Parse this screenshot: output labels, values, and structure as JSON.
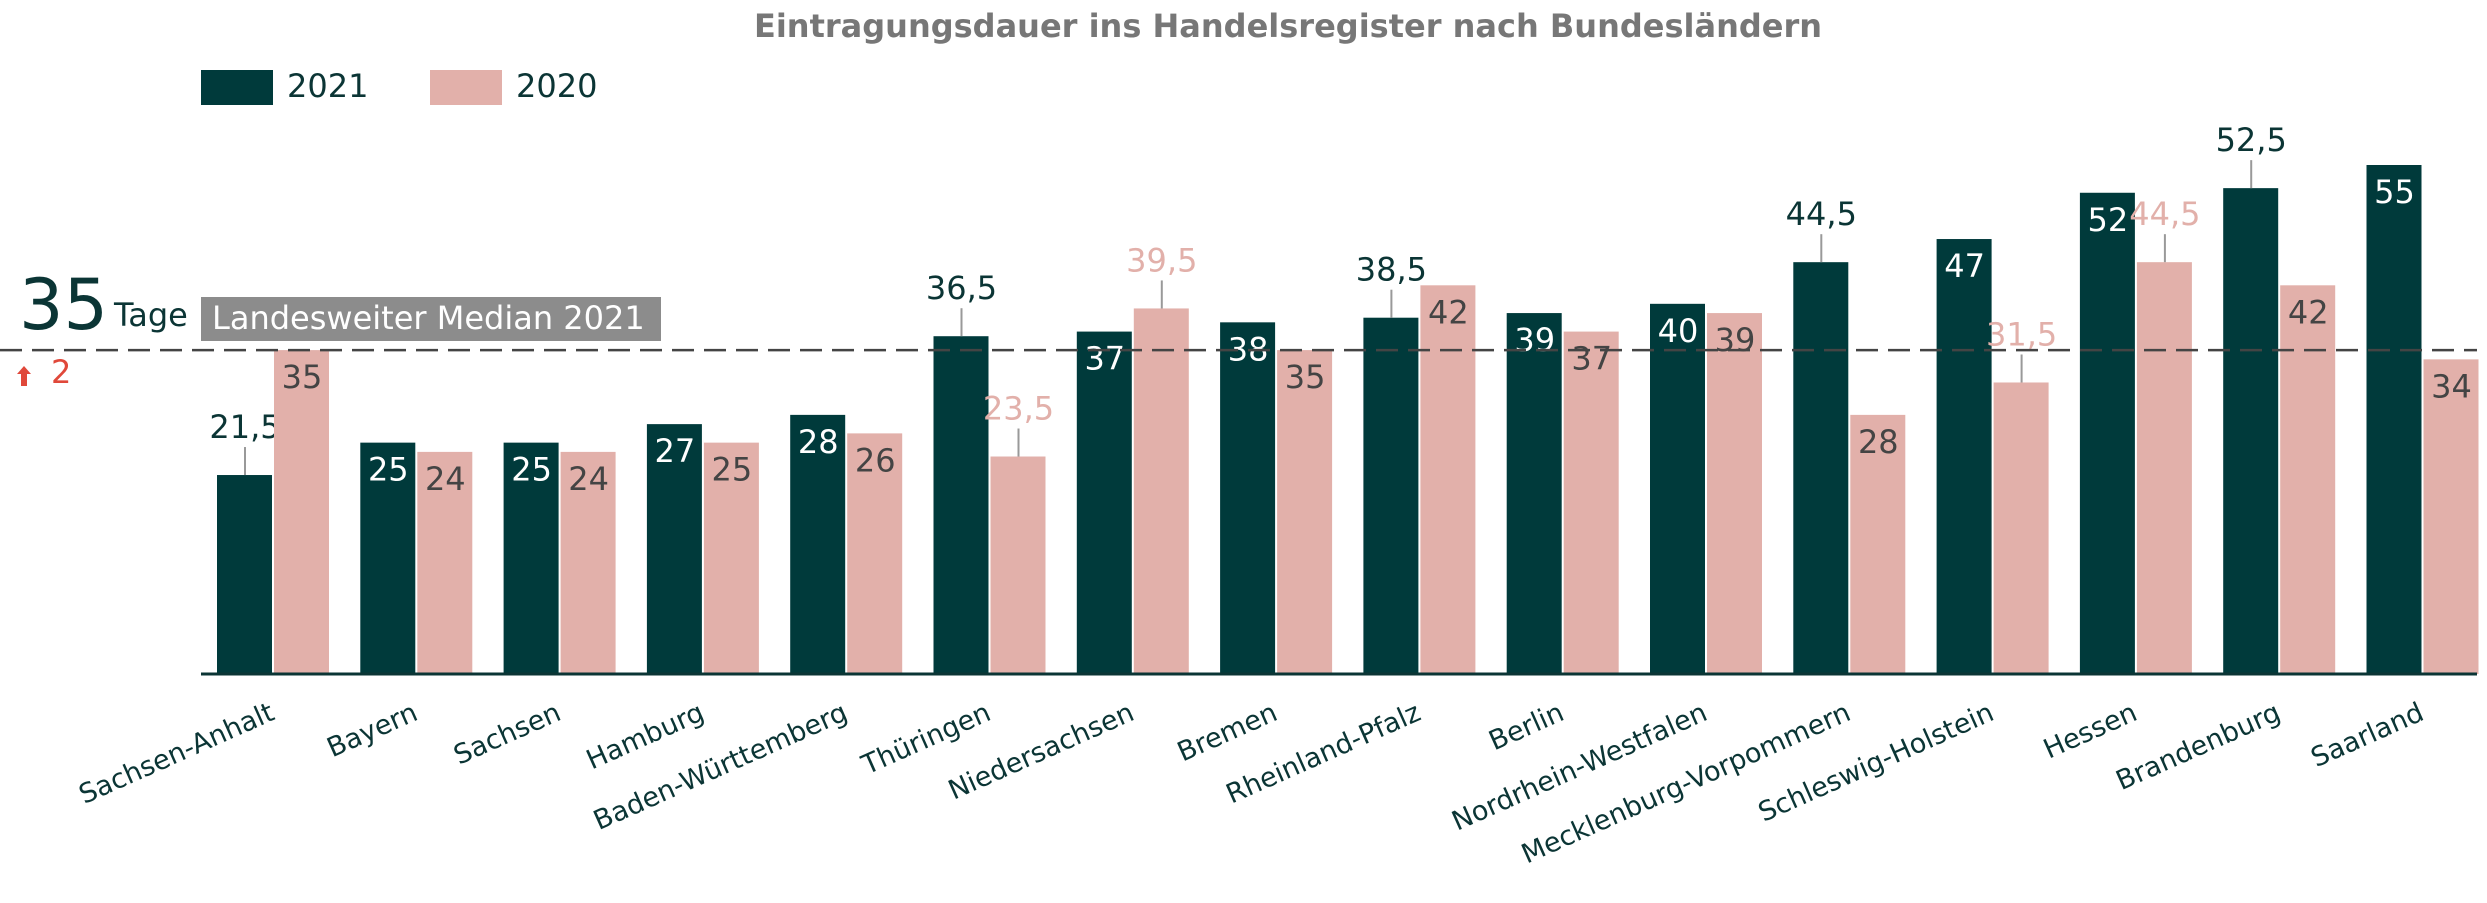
{
  "chart_data": {
    "type": "bar",
    "title": "Eintragungsdauer ins Handelsregister nach Bundesländern",
    "categories": [
      "Sachsen-Anhalt",
      "Bayern",
      "Sachsen",
      "Hamburg",
      "Baden-Württemberg",
      "Thüringen",
      "Niedersachsen",
      "Bremen",
      "Rheinland-Pfalz",
      "Berlin",
      "Nordrhein-Westfalen",
      "Mecklenburg-Vorpommern",
      "Schleswig-Holstein",
      "Hessen",
      "Brandenburg",
      "Saarland"
    ],
    "series": [
      {
        "name": "2021",
        "color": "#003a3b",
        "values": [
          21.5,
          25,
          25,
          27,
          28,
          36.5,
          37,
          38,
          38.5,
          39,
          40,
          44.5,
          47,
          52,
          52.5,
          55
        ],
        "value_labels": [
          "21,5",
          "25",
          "25",
          "27",
          "28",
          "36,5",
          "37",
          "38",
          "38,5",
          "39",
          "40",
          "44,5",
          "47",
          "52",
          "52,5",
          "55"
        ]
      },
      {
        "name": "2020",
        "color": "#e2b0aa",
        "values": [
          35,
          24,
          24,
          25,
          26,
          23.5,
          39.5,
          35,
          42,
          37,
          39,
          28,
          31.5,
          44.5,
          42,
          34
        ],
        "value_labels": [
          "35",
          "24",
          "24",
          "25",
          "26",
          "23,5",
          "39,5",
          "35",
          "42",
          "37",
          "39",
          "28",
          "31,5",
          "44,5",
          "42",
          "34"
        ]
      }
    ],
    "ylim": [
      0,
      55
    ],
    "median": {
      "value": 35,
      "unit": "Tage",
      "label": "Landesweiter Median 2021",
      "change": 2
    }
  }
}
